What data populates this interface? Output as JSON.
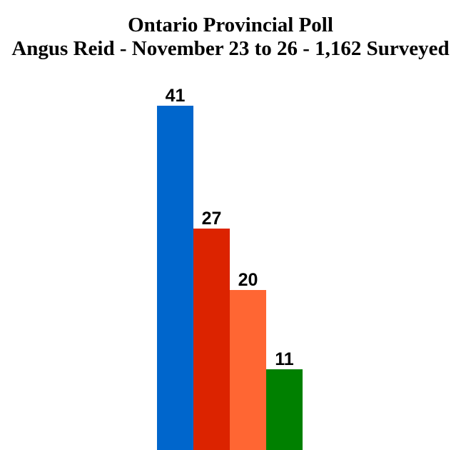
{
  "background": "#FFFFFF",
  "text_color": "#000000",
  "chart_data": {
    "type": "bar",
    "title": "Ontario Provincial Poll",
    "subtitle": "Angus Reid - November 23 to 26 - 1,162 Surveyed",
    "bars": [
      {
        "label": "41",
        "value": 41,
        "color": "#0066CC"
      },
      {
        "label": "27",
        "value": 27,
        "color": "#DC2300"
      },
      {
        "label": "20",
        "value": 20,
        "color": "#FF6633"
      },
      {
        "label": "11",
        "value": 11,
        "color": "#008000"
      }
    ],
    "xlabel": "",
    "ylabel": "",
    "axes_visible": false,
    "grid": false,
    "legend": "none",
    "value_labels_position": "above-bars",
    "bars_clipped_at_bottom": true
  }
}
